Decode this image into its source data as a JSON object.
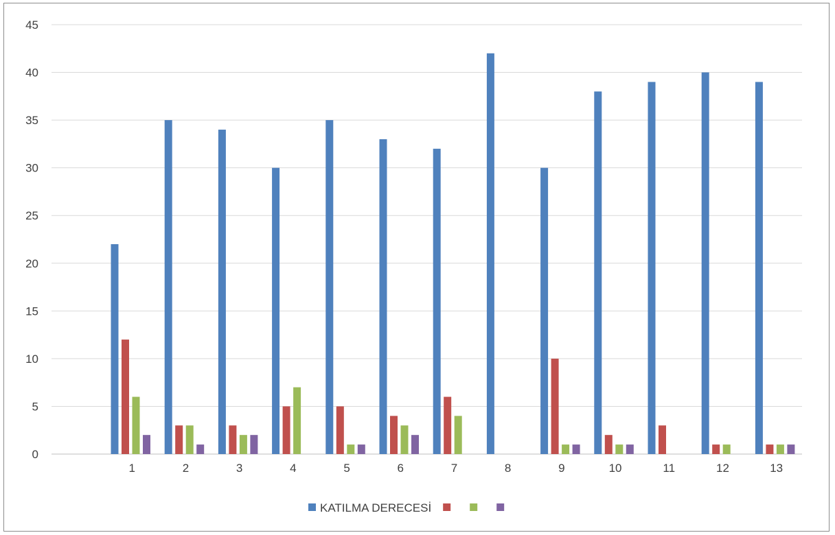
{
  "chart_data": {
    "type": "bar",
    "title": "",
    "xlabel": "",
    "ylabel": "",
    "ylim": [
      0,
      45
    ],
    "ytick_step": 5,
    "yticks": [
      "0",
      "5",
      "10",
      "15",
      "20",
      "25",
      "30",
      "35",
      "40",
      "45"
    ],
    "grid": true,
    "legend_position": "bottom",
    "categories": [
      "1",
      "2",
      "3",
      "4",
      "5",
      "6",
      "7",
      "8",
      "9",
      "10",
      "11",
      "12",
      "13"
    ],
    "series": [
      {
        "name": "KATILMA DERECESİ",
        "color": "#4f81bd",
        "values": [
          22,
          35,
          34,
          30,
          35,
          33,
          32,
          42,
          30,
          38,
          39,
          40,
          39
        ]
      },
      {
        "name": "",
        "color": "#c0504d",
        "values": [
          12,
          3,
          3,
          5,
          5,
          4,
          6,
          0,
          10,
          2,
          3,
          1,
          1
        ]
      },
      {
        "name": "",
        "color": "#9bbb59",
        "values": [
          6,
          3,
          2,
          7,
          1,
          3,
          4,
          0,
          1,
          1,
          0,
          1,
          1
        ]
      },
      {
        "name": "",
        "color": "#8064a2",
        "values": [
          2,
          1,
          2,
          0,
          1,
          2,
          0,
          0,
          1,
          1,
          0,
          0,
          1
        ]
      }
    ]
  }
}
